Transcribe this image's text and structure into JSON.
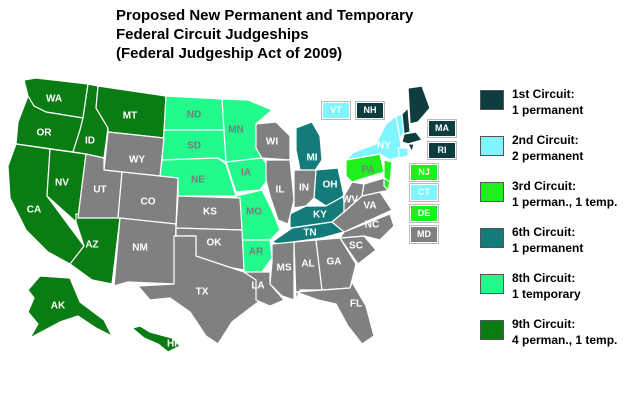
{
  "title_lines": [
    "Proposed New Permanent and Temporary",
    "Federal Circuit Judgeships",
    "(Federal Judgeship Act of 2009)"
  ],
  "colors": {
    "c1": "#0d3d3f",
    "c2": "#80f4ff",
    "c3": "#1ef01e",
    "c6": "#137c7a",
    "c8": "#22fa8c",
    "c9": "#0a7c14",
    "none": "#808080"
  },
  "legend": [
    {
      "circuit": "1st Circuit:",
      "detail": "1 permanent",
      "color_key": "c1"
    },
    {
      "circuit": "2nd Circuit:",
      "detail": "2 permanent",
      "color_key": "c2"
    },
    {
      "circuit": "3rd Circuit:",
      "detail": "1 perman., 1 temp.",
      "color_key": "c3"
    },
    {
      "circuit": "6th Circuit:",
      "detail": "1 permanent",
      "color_key": "c6"
    },
    {
      "circuit": "8th Circuit:",
      "detail": "1 temporary",
      "color_key": "c8"
    },
    {
      "circuit": "9th Circuit:",
      "detail": "4 perman., 1 temp.",
      "color_key": "c9"
    }
  ],
  "states": {
    "WA": "c9",
    "OR": "c9",
    "CA": "c9",
    "NV": "c9",
    "ID": "c9",
    "MT": "c9",
    "AZ": "c9",
    "AK": "c9",
    "HI": "c9",
    "ND": "c8",
    "SD": "c8",
    "NE": "c8",
    "MN": "c8",
    "IA": "c8",
    "MO": "c8",
    "AR": "c8",
    "MI": "c6",
    "OH": "c6",
    "KY": "c6",
    "TN": "c6",
    "PA": "c3",
    "NJ": "c3",
    "DE": "c3",
    "NY": "c2",
    "VT": "c2",
    "CT": "c2",
    "ME": "c1",
    "NH": "c1",
    "MA": "c1",
    "RI": "c1",
    "WY": "none",
    "UT": "none",
    "CO": "none",
    "NM": "none",
    "KS": "none",
    "OK": "none",
    "TX": "none",
    "LA": "none",
    "WI": "none",
    "IL": "none",
    "IN": "none",
    "MS": "none",
    "AL": "none",
    "GA": "none",
    "FL": "none",
    "SC": "none",
    "NC": "none",
    "VA": "none",
    "WV": "none",
    "MD": "none"
  }
}
